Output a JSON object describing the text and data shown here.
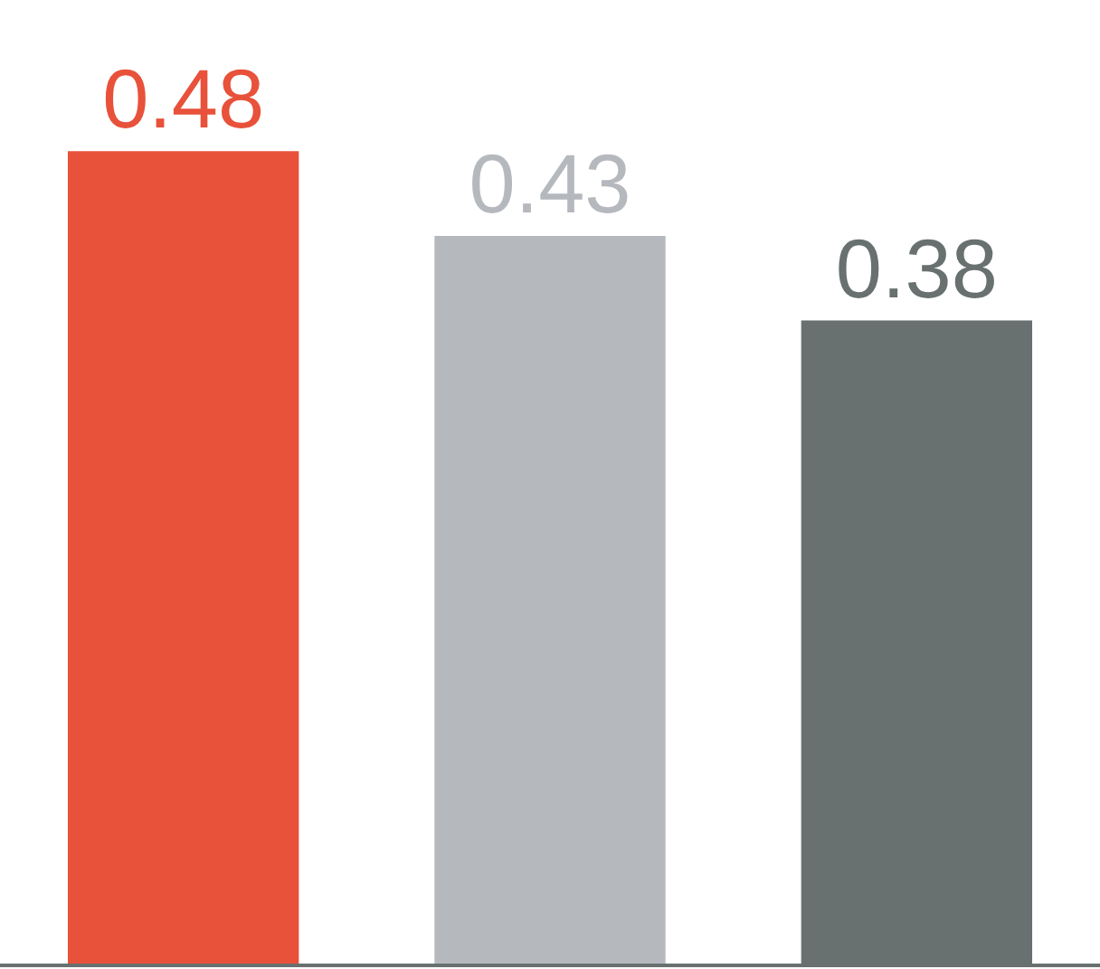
{
  "chart_data": {
    "type": "bar",
    "categories": [
      null,
      null,
      null
    ],
    "values": [
      0.48,
      0.43,
      0.38
    ],
    "colors": [
      "#e8513a",
      "#b5b9be",
      "#687070"
    ],
    "data_labels": true
  }
}
